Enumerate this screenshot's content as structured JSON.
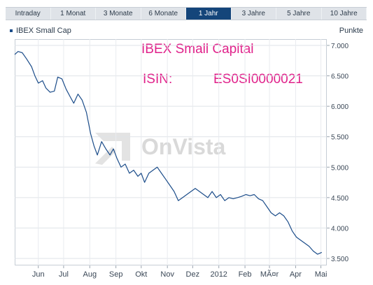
{
  "tabs": [
    {
      "label": "Intraday",
      "active": false
    },
    {
      "label": "1 Monat",
      "active": false
    },
    {
      "label": "3 Monate",
      "active": false
    },
    {
      "label": "6 Monate",
      "active": false
    },
    {
      "label": "1 Jahr",
      "active": true
    },
    {
      "label": "3 Jahre",
      "active": false
    },
    {
      "label": "5 Jahre",
      "active": false
    },
    {
      "label": "10 Jahre",
      "active": false
    }
  ],
  "watermark": "OnVista",
  "chart_data": {
    "type": "line",
    "legend": "IBEX Small Cap",
    "ylabel": "Punkte",
    "ylim": [
      3400,
      7100
    ],
    "yticks": [
      {
        "value": 7000,
        "label": "7.000"
      },
      {
        "value": 6500,
        "label": "6.500"
      },
      {
        "value": 6000,
        "label": "6.000"
      },
      {
        "value": 5500,
        "label": "5.500"
      },
      {
        "value": 5000,
        "label": "5.000"
      },
      {
        "value": 4500,
        "label": "4.500"
      },
      {
        "value": 4000,
        "label": "4.000"
      },
      {
        "value": 3500,
        "label": "3.500"
      }
    ],
    "xlim": [
      "2011-05-04",
      "2012-05-08"
    ],
    "xticks": [
      {
        "date": "2011-06-01",
        "label": "Jun"
      },
      {
        "date": "2011-07-01",
        "label": "Jul"
      },
      {
        "date": "2011-08-01",
        "label": "Aug"
      },
      {
        "date": "2011-09-01",
        "label": "Sep"
      },
      {
        "date": "2011-10-01",
        "label": "Okt"
      },
      {
        "date": "2011-11-01",
        "label": "Nov"
      },
      {
        "date": "2011-12-01",
        "label": "Dez"
      },
      {
        "date": "2012-01-01",
        "label": "2012"
      },
      {
        "date": "2012-02-01",
        "label": "Feb"
      },
      {
        "date": "2012-03-01",
        "label": "MÃ¤r"
      },
      {
        "date": "2012-04-01",
        "label": "Apr"
      },
      {
        "date": "2012-05-01",
        "label": "Mai"
      }
    ],
    "series": [
      {
        "color": "#1c4d8a",
        "points": [
          [
            "2011-05-04",
            6850
          ],
          [
            "2011-05-08",
            6900
          ],
          [
            "2011-05-13",
            6880
          ],
          [
            "2011-05-18",
            6780
          ],
          [
            "2011-05-24",
            6650
          ],
          [
            "2011-05-28",
            6500
          ],
          [
            "2011-06-01",
            6380
          ],
          [
            "2011-06-06",
            6420
          ],
          [
            "2011-06-10",
            6300
          ],
          [
            "2011-06-15",
            6230
          ],
          [
            "2011-06-20",
            6250
          ],
          [
            "2011-06-24",
            6480
          ],
          [
            "2011-06-29",
            6450
          ],
          [
            "2011-07-04",
            6280
          ],
          [
            "2011-07-09",
            6150
          ],
          [
            "2011-07-13",
            6050
          ],
          [
            "2011-07-18",
            6200
          ],
          [
            "2011-07-23",
            6100
          ],
          [
            "2011-07-28",
            5900
          ],
          [
            "2011-08-02",
            5550
          ],
          [
            "2011-08-06",
            5350
          ],
          [
            "2011-08-10",
            5200
          ],
          [
            "2011-08-15",
            5420
          ],
          [
            "2011-08-20",
            5300
          ],
          [
            "2011-08-25",
            5200
          ],
          [
            "2011-08-29",
            5300
          ],
          [
            "2011-09-02",
            5150
          ],
          [
            "2011-09-07",
            5000
          ],
          [
            "2011-09-12",
            5050
          ],
          [
            "2011-09-17",
            4900
          ],
          [
            "2011-09-22",
            4950
          ],
          [
            "2011-09-27",
            4850
          ],
          [
            "2011-10-01",
            4900
          ],
          [
            "2011-10-05",
            4750
          ],
          [
            "2011-10-10",
            4900
          ],
          [
            "2011-10-15",
            4950
          ],
          [
            "2011-10-20",
            5000
          ],
          [
            "2011-10-25",
            4900
          ],
          [
            "2011-10-30",
            4800
          ],
          [
            "2011-11-04",
            4700
          ],
          [
            "2011-11-09",
            4600
          ],
          [
            "2011-11-14",
            4450
          ],
          [
            "2011-11-19",
            4500
          ],
          [
            "2011-11-24",
            4550
          ],
          [
            "2011-11-29",
            4600
          ],
          [
            "2011-12-04",
            4650
          ],
          [
            "2011-12-09",
            4600
          ],
          [
            "2011-12-14",
            4550
          ],
          [
            "2011-12-19",
            4500
          ],
          [
            "2011-12-24",
            4600
          ],
          [
            "2011-12-29",
            4500
          ],
          [
            "2012-01-03",
            4550
          ],
          [
            "2012-01-08",
            4450
          ],
          [
            "2012-01-13",
            4500
          ],
          [
            "2012-01-18",
            4480
          ],
          [
            "2012-01-23",
            4500
          ],
          [
            "2012-01-28",
            4520
          ],
          [
            "2012-02-02",
            4550
          ],
          [
            "2012-02-07",
            4530
          ],
          [
            "2012-02-12",
            4550
          ],
          [
            "2012-02-17",
            4480
          ],
          [
            "2012-02-22",
            4450
          ],
          [
            "2012-02-27",
            4350
          ],
          [
            "2012-03-03",
            4250
          ],
          [
            "2012-03-08",
            4200
          ],
          [
            "2012-03-13",
            4250
          ],
          [
            "2012-03-18",
            4200
          ],
          [
            "2012-03-23",
            4100
          ],
          [
            "2012-03-28",
            3950
          ],
          [
            "2012-04-02",
            3850
          ],
          [
            "2012-04-07",
            3800
          ],
          [
            "2012-04-12",
            3750
          ],
          [
            "2012-04-17",
            3700
          ],
          [
            "2012-04-22",
            3620
          ],
          [
            "2012-04-27",
            3570
          ],
          [
            "2012-05-02",
            3600
          ]
        ]
      }
    ],
    "annotations": [
      "IBEX Small Capital",
      "ISIN:",
      "ES0SI0000021"
    ]
  }
}
